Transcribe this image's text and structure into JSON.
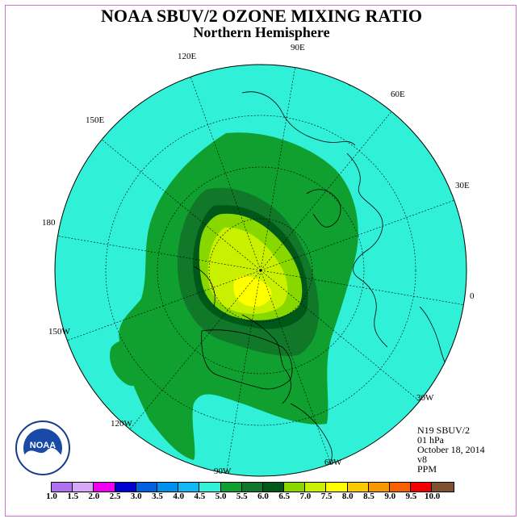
{
  "title": "NOAA SBUV/2 OZONE MIXING RATIO",
  "subtitle": "Northern Hemisphere",
  "longitude_labels": [
    {
      "id": "lon-90e",
      "text": "90E"
    },
    {
      "id": "lon-60e",
      "text": "60E"
    },
    {
      "id": "lon-30e",
      "text": "30E"
    },
    {
      "id": "lon-0",
      "text": "0"
    },
    {
      "id": "lon-30w",
      "text": "30W"
    },
    {
      "id": "lon-60w",
      "text": "60W"
    },
    {
      "id": "lon-90w",
      "text": "90W"
    },
    {
      "id": "lon-120w",
      "text": "120W"
    },
    {
      "id": "lon-150w",
      "text": "150W"
    },
    {
      "id": "lon-180",
      "text": "180"
    },
    {
      "id": "lon-150e",
      "text": "150E"
    },
    {
      "id": "lon-120e",
      "text": "120E"
    }
  ],
  "info": {
    "instrument": "N19 SBUV/2",
    "pressure_level": "01 hPa",
    "date": "October 18, 2014",
    "version": "v8",
    "units": "PPM"
  },
  "logo": {
    "text": "NOAA"
  },
  "colorbar": {
    "ticks": [
      "1.0",
      "1.5",
      "2.0",
      "2.5",
      "3.0",
      "3.5",
      "4.0",
      "4.5",
      "5.0",
      "5.5",
      "6.0",
      "6.5",
      "7.0",
      "7.5",
      "8.0",
      "8.5",
      "9.0",
      "9.5",
      "10.0"
    ],
    "colors": [
      "#b070f0",
      "#d8a8f8",
      "#f000f0",
      "#0000d0",
      "#0060e0",
      "#0090f0",
      "#10b8f8",
      "#30f0d8",
      "#10a030",
      "#107828",
      "#005818",
      "#88d800",
      "#c8f000",
      "#ffff00",
      "#f8c800",
      "#f89800",
      "#f86000",
      "#f00000",
      "#805030"
    ]
  },
  "colors": {
    "contour_4_5": "#30f0d8",
    "contour_5_0": "#10a030",
    "contour_5_5": "#107828",
    "contour_6_0": "#005818",
    "contour_6_5": "#88d800",
    "contour_7_0": "#c8f000",
    "contour_7_5": "#ffff00"
  }
}
